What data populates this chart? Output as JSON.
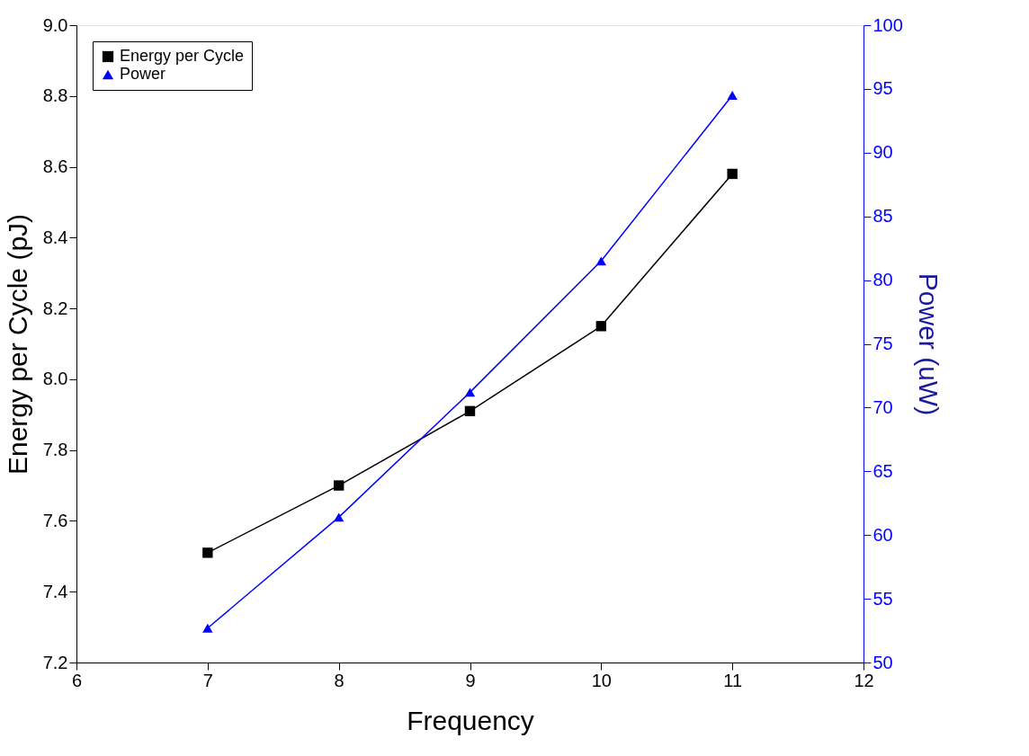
{
  "chart_data": {
    "type": "line",
    "xlabel": "Frequency",
    "ylabel": "Energy per Cycle (pJ)",
    "y2label": "Power (uW)",
    "x": [
      7,
      8,
      9,
      10,
      11
    ],
    "series": [
      {
        "name": "Energy per Cycle",
        "color": "#000000",
        "marker": "square",
        "values": [
          7.51,
          7.7,
          7.91,
          8.15,
          8.58
        ]
      },
      {
        "name": "Power",
        "color": "#0000ff",
        "marker": "triangle",
        "axis": "y2",
        "values": [
          52.7,
          61.4,
          71.2,
          81.5,
          94.5
        ]
      }
    ],
    "xlim": [
      6,
      12
    ],
    "xticks": [
      6,
      7,
      8,
      9,
      10,
      11,
      12
    ],
    "ylim": [
      7.2,
      9.0
    ],
    "yticks": [
      {
        "value": 7.2,
        "label": "7.2"
      },
      {
        "value": 7.4,
        "label": "7.4"
      },
      {
        "value": 7.6,
        "label": "7.6"
      },
      {
        "value": 7.8,
        "label": "7.8"
      },
      {
        "value": 8.0,
        "label": "8.0"
      },
      {
        "value": 8.2,
        "label": "8.2"
      },
      {
        "value": 8.4,
        "label": "8.4"
      },
      {
        "value": 8.6,
        "label": "8.6"
      },
      {
        "value": 8.8,
        "label": "8.8"
      },
      {
        "value": 9.0,
        "label": "9.0"
      }
    ],
    "y2lim": [
      50,
      100
    ],
    "y2ticks": [
      50,
      55,
      60,
      65,
      70,
      75,
      80,
      85,
      90,
      95,
      100
    ],
    "grid": false,
    "legend": "top left"
  }
}
